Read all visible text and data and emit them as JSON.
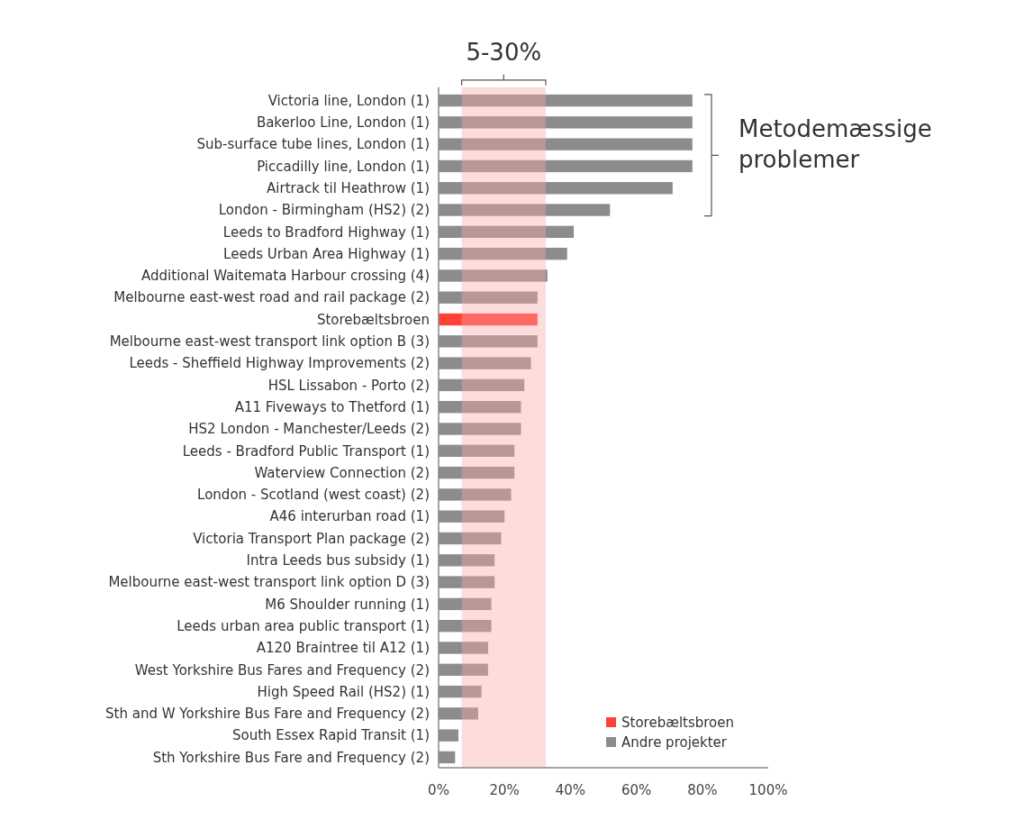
{
  "chart_data": {
    "type": "bar",
    "orientation": "horizontal",
    "categories": [
      "Victoria line, London (1)",
      "Bakerloo Line, London (1)",
      "Sub-surface tube lines, London (1)",
      "Piccadilly line, London (1)",
      "Airtrack til Heathrow (1)",
      "London - Birmingham (HS2) (2)",
      "Leeds to Bradford Highway (1)",
      "Leeds Urban Area Highway (1)",
      "Additional Waitemata Harbour crossing (4)",
      "Melbourne east-west road and rail package (2)",
      "Storebæltsbroen",
      "Melbourne east-west transport link option B (3)",
      "Leeds - Sheffield Highway Improvements (2)",
      "HSL Lissabon - Porto (2)",
      "A11 Fiveways to Thetford (1)",
      "HS2 London - Manchester/Leeds (2)",
      "Leeds - Bradford Public Transport (1)",
      "Waterview Connection (2)",
      "London - Scotland (west coast) (2)",
      "A46 interurban road (1)",
      "Victoria Transport Plan package (2)",
      "Intra Leeds bus subsidy (1)",
      "Melbourne east-west transport link option D (3)",
      "M6 Shoulder running (1)",
      "Leeds urban area public transport (1)",
      "A120 Braintree til A12 (1)",
      "West Yorkshire Bus Fares and Frequency (2)",
      "High Speed Rail (HS2) (1)",
      "Sth and W Yorkshire Bus Fare and Frequency (2)",
      "South Essex Rapid Transit (1)",
      "Sth Yorkshire Bus Fare and Frequency (2)"
    ],
    "series": [
      {
        "name": "Storebæltsbroen",
        "color": "#ff4136",
        "values": [
          null,
          null,
          null,
          null,
          null,
          null,
          null,
          null,
          null,
          null,
          30,
          null,
          null,
          null,
          null,
          null,
          null,
          null,
          null,
          null,
          null,
          null,
          null,
          null,
          null,
          null,
          null,
          null,
          null,
          null,
          null
        ]
      },
      {
        "name": "Andre projekter",
        "color": "#8c8c8c",
        "values": [
          77,
          77,
          77,
          77,
          71,
          52,
          41,
          39,
          33,
          30,
          null,
          30,
          28,
          26,
          25,
          25,
          23,
          23,
          22,
          20,
          19,
          17,
          17,
          16,
          16,
          15,
          15,
          13,
          12,
          6,
          5
        ]
      }
    ],
    "xlim": [
      0,
      100
    ],
    "xticks": [
      {
        "value": 0,
        "label": "0%"
      },
      {
        "value": 20,
        "label": "20%"
      },
      {
        "value": 40,
        "label": "40%"
      },
      {
        "value": 60,
        "label": "60%"
      },
      {
        "value": 80,
        "label": "80%"
      },
      {
        "value": 100,
        "label": "100%"
      }
    ],
    "bands": [
      {
        "axis": "x",
        "from": 7,
        "to": 32.5,
        "label": "5-30%",
        "color": "#faa7a7"
      }
    ],
    "annotations": [
      "Metodemæssige problemer"
    ],
    "legend": "bottom right",
    "grid": false
  }
}
